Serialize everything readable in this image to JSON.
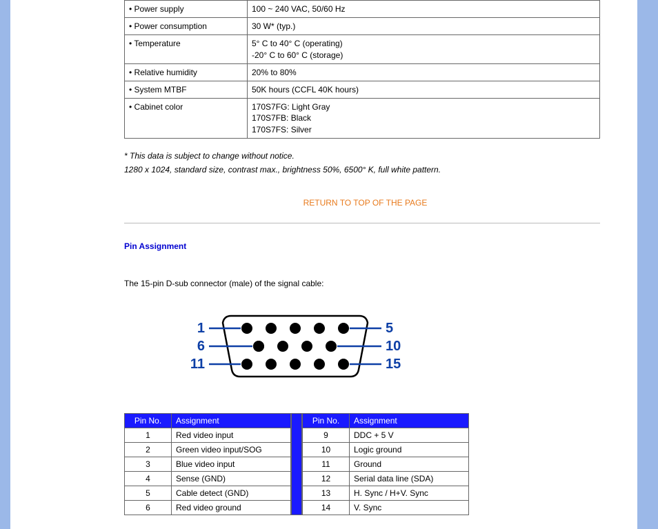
{
  "spec_rows": [
    {
      "label": "• Power supply",
      "value": "100 ~ 240 VAC, 50/60 Hz"
    },
    {
      "label": "• Power consumption",
      "value": "30 W* (typ.)"
    },
    {
      "label": "• Temperature",
      "value": "5° C to 40° C (operating)\n-20° C to 60° C (storage)"
    },
    {
      "label": "• Relative humidity",
      "value": "20% to 80%"
    },
    {
      "label": "• System MTBF",
      "value": "50K hours (CCFL 40K hours)"
    },
    {
      "label": "• Cabinet color",
      "value": "170S7FG: Light Gray\n170S7FB: Black\n170S7FS: Silver"
    }
  ],
  "note1": "* This data is subject to change without notice.",
  "note2": "1280 x 1024, standard size, contrast max., brightness 50%, 6500° K, full white pattern.",
  "return_link": "RETURN TO TOP OF THE PAGE",
  "section_title": "Pin Assignment",
  "connector_desc": "The 15-pin D-sub connector (male) of the signal cable:",
  "pin_header_no": "Pin No.",
  "pin_header_assign": "Assignment",
  "pins_left": [
    {
      "no": "1",
      "assign": "Red video input"
    },
    {
      "no": "2",
      "assign": "Green video input/SOG"
    },
    {
      "no": "3",
      "assign": "Blue video input"
    },
    {
      "no": "4",
      "assign": "Sense (GND)"
    },
    {
      "no": "5",
      "assign": "Cable detect (GND)"
    },
    {
      "no": "6",
      "assign": "Red video ground"
    }
  ],
  "pins_right": [
    {
      "no": "9",
      "assign": "DDC + 5 V"
    },
    {
      "no": "10",
      "assign": "Logic ground"
    },
    {
      "no": "11",
      "assign": "Ground"
    },
    {
      "no": "12",
      "assign": "Serial data line (SDA)"
    },
    {
      "no": "13",
      "assign": "H. Sync / H+V. Sync"
    },
    {
      "no": "14",
      "assign": "V. Sync"
    }
  ],
  "connector": {
    "labels_left": [
      "1",
      "6",
      "11"
    ],
    "labels_right": [
      "5",
      "10",
      "15"
    ],
    "label_color": "#0d3fa6",
    "pin_color": "#000000",
    "line_color": "#0d3fa6",
    "shell_stroke": "#000000",
    "shell_fill": "#ffffff",
    "label_fontsize": 20,
    "label_fontweight": "bold"
  },
  "colors": {
    "sidebar_blue": "#9bb8e8",
    "link_orange": "#e87a1c",
    "header_blue": "#1a1aff",
    "title_blue": "#0000d0"
  }
}
